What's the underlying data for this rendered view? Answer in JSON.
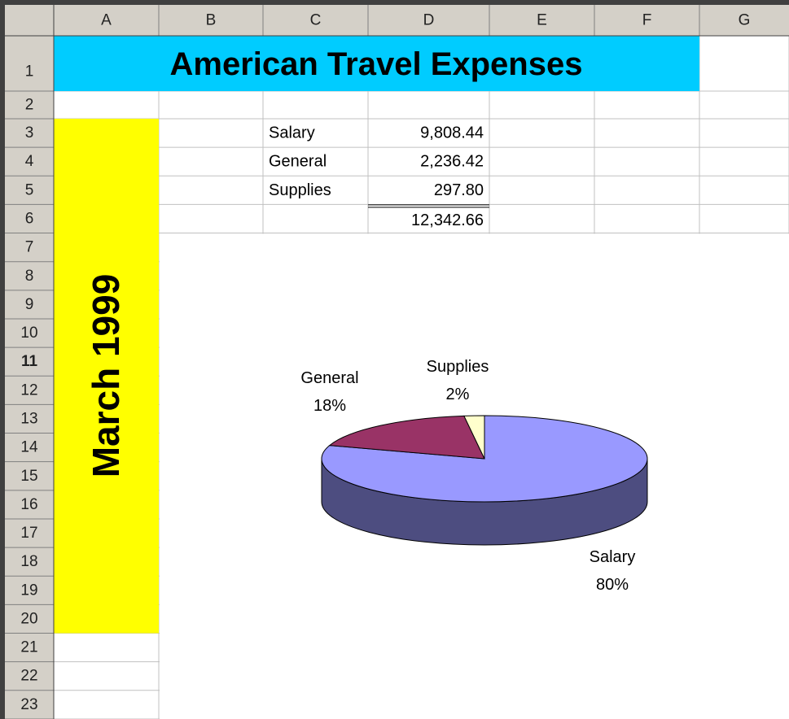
{
  "columns": [
    "A",
    "B",
    "C",
    "D",
    "E",
    "F",
    "G"
  ],
  "rows": [
    1,
    2,
    3,
    4,
    5,
    6,
    7,
    8,
    9,
    10,
    11,
    12,
    13,
    14,
    15,
    16,
    17,
    18,
    19,
    20,
    21,
    22,
    23
  ],
  "title": "American Travel Expenses",
  "side_label": "March 1999",
  "table": {
    "items": [
      {
        "label": "Salary",
        "amount": "9,808.44"
      },
      {
        "label": "General",
        "amount": "2,236.42"
      },
      {
        "label": "Supplies",
        "amount": "297.80"
      }
    ],
    "total": "12,342.66"
  },
  "chart": {
    "type": "pie",
    "categories": [
      "Salary",
      "General",
      "Supplies"
    ],
    "values": [
      80,
      18,
      2
    ],
    "value_labels": [
      "80%",
      "18%",
      "2%"
    ],
    "colors": [
      "#9999ff",
      "#993366",
      "#ffffcc"
    ],
    "side_color": "#4d4d80"
  }
}
